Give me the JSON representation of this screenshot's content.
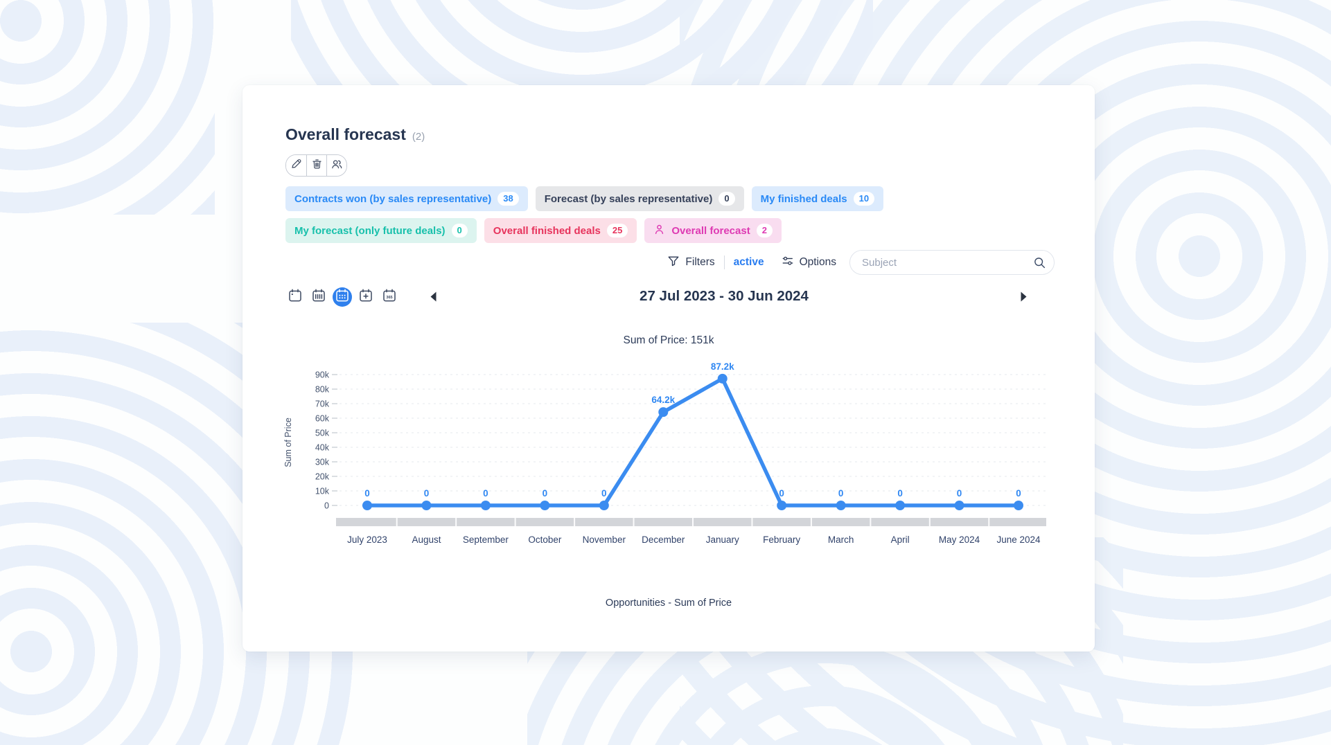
{
  "header": {
    "title": "Overall forecast",
    "count": "(2)"
  },
  "toolbar": {
    "buttons": [
      {
        "id": "edit",
        "icon": "pencil-icon"
      },
      {
        "id": "delete",
        "icon": "trash-icon"
      },
      {
        "id": "assign",
        "icon": "people-icon"
      }
    ]
  },
  "filter_chips": {
    "row1": [
      {
        "label": "Contracts won (by sales representative)",
        "count": "38",
        "color": "blue"
      },
      {
        "label": "Forecast (by sales representative)",
        "count": "0",
        "color": "gray"
      },
      {
        "label": "My finished deals",
        "count": "10",
        "color": "blue"
      }
    ],
    "row2": [
      {
        "label": "My forecast (only future deals)",
        "count": "0",
        "color": "teal"
      },
      {
        "label": "Overall finished deals",
        "count": "25",
        "color": "red"
      },
      {
        "label": "Overall forecast",
        "count": "2",
        "color": "magenta",
        "icon": "person-icon"
      }
    ]
  },
  "filters_bar": {
    "filters_label": "Filters",
    "state_label": "active",
    "options_label": "Options",
    "search_placeholder": "Subject"
  },
  "period_nav": {
    "range_label": "27 Jul 2023 - 30 Jun 2024",
    "views": [
      {
        "id": "day",
        "active": false
      },
      {
        "id": "week",
        "active": false
      },
      {
        "id": "month",
        "active": true
      },
      {
        "id": "add",
        "active": false
      },
      {
        "id": "year",
        "active": false
      }
    ]
  },
  "chart_data": {
    "type": "line",
    "title": "Sum of Price: 151k",
    "total": "151k",
    "ylabel": "Sum of Price",
    "x": [
      "July 2023",
      "August",
      "September",
      "October",
      "November",
      "December",
      "January",
      "February",
      "March",
      "April",
      "May 2024",
      "June 2024"
    ],
    "series": [
      {
        "name": "Opportunities - Sum of Price",
        "values": [
          0,
          0,
          0,
          0,
          0,
          64200,
          87200,
          0,
          0,
          0,
          0,
          0
        ],
        "labels": [
          "0",
          "0",
          "0",
          "0",
          "0",
          "64.2k",
          "87.2k",
          "0",
          "0",
          "0",
          "0",
          "0"
        ],
        "color": "#3b8cf0"
      }
    ],
    "ylim": [
      0,
      90000
    ],
    "yticks": [
      "90k",
      "80k",
      "70k",
      "60k",
      "50k",
      "40k",
      "30k",
      "20k",
      "10k",
      "0"
    ],
    "grid": "dashed",
    "legend": "Opportunities - Sum of Price",
    "legend_position": "bottom"
  },
  "colors": {
    "accent_blue": "#2a8af6",
    "line_blue": "#3b8cf0",
    "active_view_bg": "#2f80ed",
    "chip_blue_bg": "#dcebfd",
    "chip_gray_bg": "#e6e7e9",
    "chip_teal_bg": "#dcf4ef",
    "chip_red_bg": "#fcdfe7",
    "chip_magenta_bg": "#f9ddf0",
    "title_navy": "#263550",
    "grid_gray": "#e5e8ec",
    "axis_band_gray": "#d3d5d9"
  }
}
